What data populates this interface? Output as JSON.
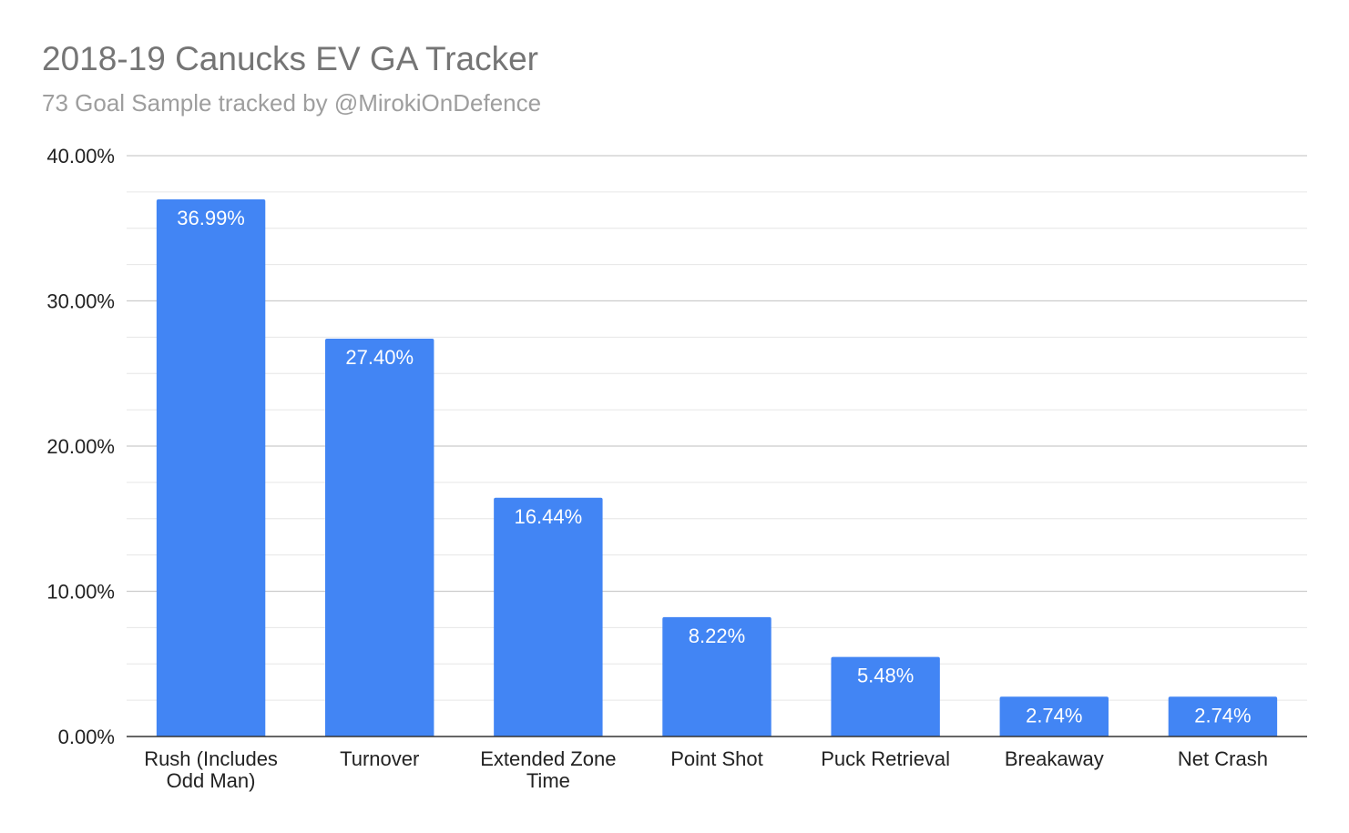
{
  "chart_data": {
    "type": "bar",
    "title": "2018-19 Canucks EV GA Tracker",
    "subtitle": "73 Goal Sample tracked by @MirokiOnDefence",
    "xlabel": "",
    "ylabel": "",
    "categories": [
      [
        "Rush (Includes",
        "Odd Man)"
      ],
      [
        "Turnover"
      ],
      [
        "Extended Zone",
        "Time"
      ],
      [
        "Point Shot"
      ],
      [
        "Puck Retrieval"
      ],
      [
        "Breakaway"
      ],
      [
        "Net Crash"
      ]
    ],
    "values": [
      36.99,
      27.4,
      16.44,
      8.22,
      5.48,
      2.74,
      2.74
    ],
    "value_labels": [
      "36.99%",
      "27.40%",
      "16.44%",
      "8.22%",
      "5.48%",
      "2.74%",
      "2.74%"
    ],
    "ylim": [
      0,
      40
    ],
    "y_ticks": [
      0,
      10,
      20,
      30,
      40
    ],
    "y_tick_labels": [
      "0.00%",
      "10.00%",
      "20.00%",
      "30.00%",
      "40.00%"
    ],
    "minor_gridlines_per_major": 3,
    "grid": true,
    "legend": "none",
    "colors": {
      "bar": "#4285f4",
      "grid_major": "#cccccc",
      "grid_minor": "#e6e6e6",
      "axis": "#333333",
      "title": "#757575",
      "subtitle": "#9e9e9e",
      "data_label": "#ffffff"
    }
  }
}
